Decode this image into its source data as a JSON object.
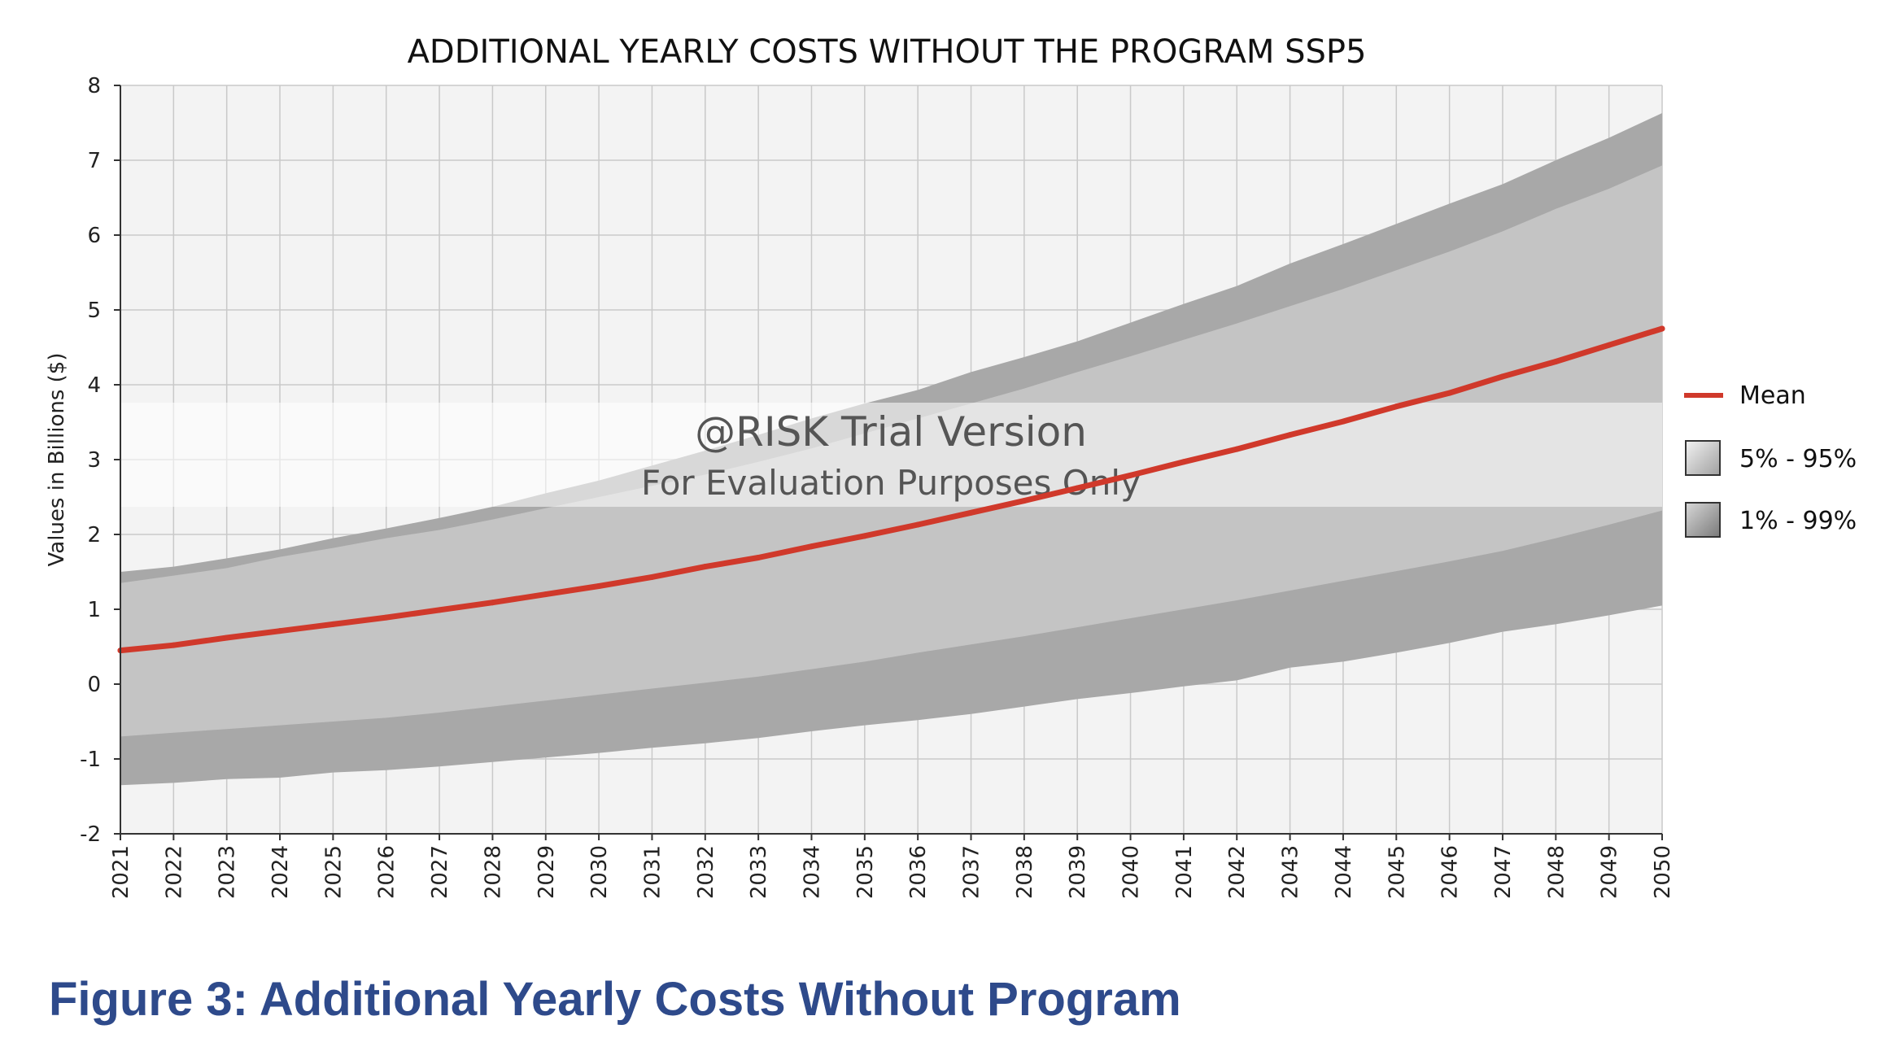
{
  "chart_data": {
    "type": "area",
    "title": "ADDITIONAL YEARLY COSTS WITHOUT THE PROGRAM SSP5",
    "xlabel": "",
    "ylabel": "Values in Billions ($)",
    "ylim": [
      -2,
      8
    ],
    "yticks": [
      "8",
      "7",
      "6",
      "5",
      "4",
      "3",
      "2",
      "1",
      "0",
      "-1",
      "-2"
    ],
    "grid": true,
    "categories": [
      "2021",
      "2022",
      "2023",
      "2024",
      "2025",
      "2026",
      "2027",
      "2028",
      "2029",
      "2030",
      "2031",
      "2032",
      "2033",
      "2034",
      "2035",
      "2036",
      "2037",
      "2038",
      "2039",
      "2040",
      "2041",
      "2042",
      "2043",
      "2044",
      "2045",
      "2046",
      "2047",
      "2048",
      "2049",
      "2050"
    ],
    "series": [
      {
        "name": "Mean",
        "values": [
          0.45,
          0.52,
          0.62,
          0.71,
          0.8,
          0.89,
          0.99,
          1.09,
          1.2,
          1.31,
          1.43,
          1.57,
          1.69,
          1.84,
          1.98,
          2.13,
          2.29,
          2.45,
          2.62,
          2.79,
          2.97,
          3.14,
          3.33,
          3.51,
          3.71,
          3.89,
          4.11,
          4.31,
          4.53,
          4.75
        ]
      },
      {
        "name": "5%",
        "values": [
          -0.7,
          -0.65,
          -0.6,
          -0.55,
          -0.5,
          -0.45,
          -0.38,
          -0.3,
          -0.22,
          -0.14,
          -0.06,
          0.02,
          0.1,
          0.2,
          0.3,
          0.42,
          0.53,
          0.64,
          0.76,
          0.88,
          1.0,
          1.12,
          1.25,
          1.38,
          1.51,
          1.64,
          1.78,
          1.95,
          2.13,
          2.32
        ]
      },
      {
        "name": "95%",
        "values": [
          1.35,
          1.45,
          1.55,
          1.7,
          1.82,
          1.95,
          2.06,
          2.2,
          2.35,
          2.5,
          2.65,
          2.8,
          2.97,
          3.15,
          3.35,
          3.55,
          3.75,
          3.95,
          4.17,
          4.38,
          4.6,
          4.82,
          5.05,
          5.28,
          5.53,
          5.78,
          6.05,
          6.35,
          6.62,
          6.93
        ]
      },
      {
        "name": "1%",
        "values": [
          -1.35,
          -1.32,
          -1.27,
          -1.25,
          -1.18,
          -1.15,
          -1.1,
          -1.04,
          -0.98,
          -0.92,
          -0.85,
          -0.79,
          -0.72,
          -0.63,
          -0.55,
          -0.48,
          -0.4,
          -0.3,
          -0.2,
          -0.12,
          -0.03,
          0.05,
          0.22,
          0.3,
          0.42,
          0.55,
          0.7,
          0.8,
          0.92,
          1.05
        ]
      },
      {
        "name": "99%",
        "values": [
          1.5,
          1.57,
          1.68,
          1.8,
          1.95,
          2.08,
          2.22,
          2.37,
          2.55,
          2.72,
          2.92,
          3.12,
          3.33,
          3.55,
          3.75,
          3.93,
          4.17,
          4.37,
          4.58,
          4.83,
          5.08,
          5.32,
          5.62,
          5.88,
          6.15,
          6.42,
          6.68,
          7.0,
          7.3,
          7.63
        ]
      }
    ],
    "legend": {
      "position": "right",
      "entries": [
        "Mean",
        "5% - 95%",
        "1% - 99%"
      ]
    },
    "colors": {
      "mean": "#d0392b",
      "band_5_95": "#c4c4c4",
      "band_1_99": "#a8a8a8",
      "plot_bg": "#f3f3f3",
      "grid": "#c9c9c9"
    },
    "watermark": {
      "line1": "@RISK Trial Version",
      "line2": "For Evaluation Purposes Only"
    }
  },
  "caption": "Figure 3: Additional Yearly Costs Without Program"
}
